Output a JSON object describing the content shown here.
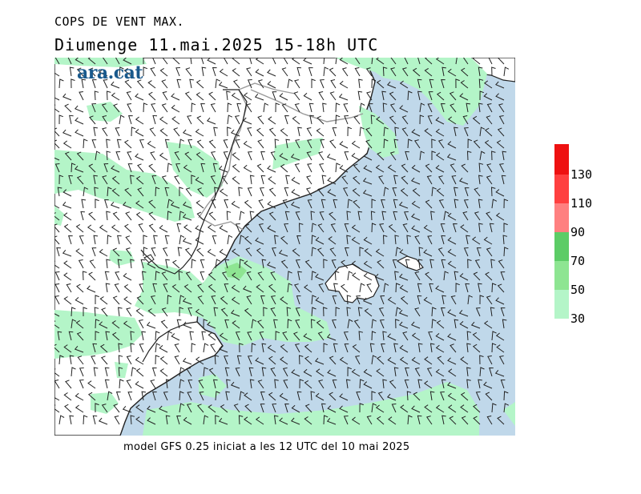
{
  "header": {
    "title": "COPS DE VENT MAX.",
    "subtitle": "Diumenge  11.mai.2025  15-18h UTC"
  },
  "logo_text": "ara.cat",
  "footer": "model GFS 0.25 iniciat a les 12 UTC del 10 mai 2025",
  "legend": {
    "ticks": [
      "30",
      "50",
      "70",
      "90",
      "110",
      "130"
    ],
    "colors": [
      "#b4f5c8",
      "#8ee592",
      "#5ccc66",
      "#ff8080",
      "#ff4040",
      "#ee1111",
      "#cc0000"
    ]
  },
  "colors": {
    "sea": "#c0d8ea",
    "land": "#ffffff",
    "gust_30_50": "#b4f5c8",
    "gust_50_70": "#8ee592",
    "gust_70_90": "#5ccc66",
    "coastline": "#222222",
    "border": "#999999"
  }
}
